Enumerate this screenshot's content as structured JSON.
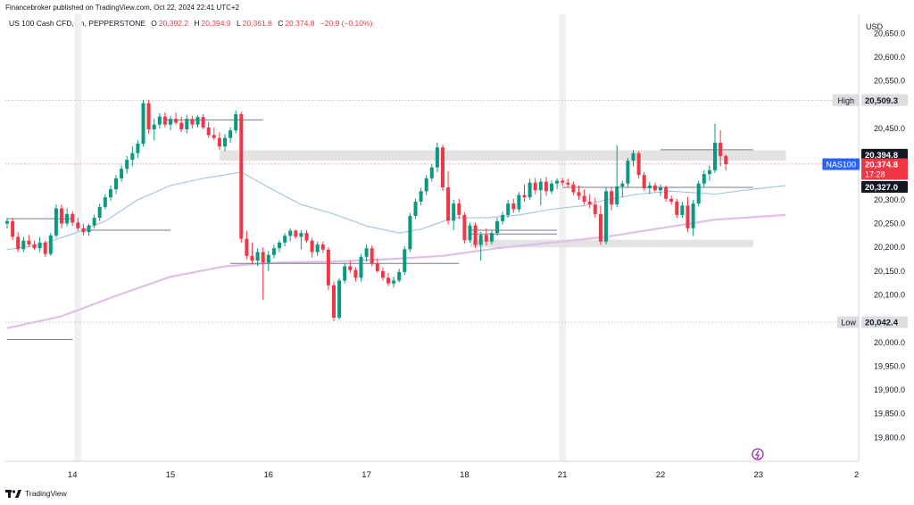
{
  "publisher_line": "Financebroker published on TradingView.com, Oct 22, 2024 22:41 UTC+2",
  "symbol": "US 100 Cash CFD, 1h, PEPPERSTONE",
  "ohlc": {
    "open_key": "O",
    "open": "20,392.2",
    "high_key": "H",
    "high": "20,394.9",
    "low_key": "L",
    "low": "20,361.8",
    "close_key": "C",
    "close": "20,374.8",
    "change": "−20.9 (−0.10%)"
  },
  "footer_brand": "TradingView",
  "colors": {
    "up": "#089981",
    "down": "#f23645",
    "ma_fast": "#9fc3dc",
    "ma_slow": "#e1bee7",
    "zone": "#e3e3e3",
    "level_line": "#787b86"
  },
  "chart_data": {
    "type": "candlestick",
    "currency_label": "USD",
    "ylim": [
      19750,
      20690
    ],
    "y_ticks": [
      19800,
      19850,
      19900,
      19950,
      20000,
      20050,
      20100,
      20150,
      20200,
      20250,
      20300,
      20350,
      20400,
      20450,
      20500,
      20550,
      20600,
      20650
    ],
    "y_tick_labels": [
      "19,800.0",
      "19,850.0",
      "19,900.0",
      "19,950.0",
      "20,000.0",
      "",
      "20,100.0",
      "20,150.0",
      "20,200.0",
      "20,250.0",
      "20,300.0",
      "",
      "",
      "20,450.0",
      "",
      "20,550.0",
      "20,600.0",
      "20,650.0"
    ],
    "x_labels": [
      "14",
      "15",
      "16",
      "17",
      "18",
      "21",
      "22",
      "23",
      "2"
    ],
    "x_label_index": [
      12,
      30,
      48,
      66,
      84,
      102,
      120,
      138,
      156
    ],
    "price_tags": [
      {
        "label": "High",
        "value": 20509.3,
        "text": "20,509.3",
        "style": "gray"
      },
      {
        "label": "",
        "value": 20394.8,
        "text": "20,394.8",
        "style": "dark"
      },
      {
        "label": "NAS100",
        "value": 20374.8,
        "text": "20,374.8",
        "countdown": "17:28",
        "style": "red"
      },
      {
        "label": "",
        "value": 20327.0,
        "text": "20,327.0",
        "style": "dark"
      },
      {
        "label": "Low",
        "value": 20042.4,
        "text": "20,042.4",
        "style": "gray"
      }
    ],
    "reference_lines": [
      {
        "name": "High",
        "value": 20509.3
      },
      {
        "name": "Low",
        "value": 20042.4
      }
    ],
    "zones": [
      {
        "from_index": 39,
        "to_index": 143,
        "low": 20382,
        "high": 20404
      },
      {
        "from_index": 85,
        "to_index": 137,
        "low": 20200,
        "high": 20216
      }
    ],
    "level_segments": [
      {
        "from_index": 0,
        "to_index": 12,
        "value": 20260
      },
      {
        "from_index": 14,
        "to_index": 30,
        "value": 20236
      },
      {
        "from_index": 29,
        "to_index": 47,
        "value": 20468
      },
      {
        "from_index": 41,
        "to_index": 83,
        "value": 20166
      },
      {
        "from_index": 85,
        "to_index": 101,
        "value": 20236
      },
      {
        "from_index": 85,
        "to_index": 101,
        "value": 20228
      },
      {
        "from_index": 102,
        "to_index": 137,
        "value": 20326
      },
      {
        "from_index": 120,
        "to_index": 137,
        "value": 20405
      },
      {
        "from_index": 0,
        "to_index": 12,
        "value": 20006
      }
    ],
    "candles": [
      [
        20250,
        20262,
        20240,
        20255
      ],
      [
        20255,
        20262,
        20215,
        20222
      ],
      [
        20222,
        20232,
        20190,
        20196
      ],
      [
        20196,
        20222,
        20190,
        20214
      ],
      [
        20214,
        20226,
        20200,
        20206
      ],
      [
        20206,
        20214,
        20195,
        20198
      ],
      [
        20198,
        20222,
        20190,
        20210
      ],
      [
        20210,
        20214,
        20180,
        20186
      ],
      [
        20186,
        20230,
        20182,
        20225
      ],
      [
        20225,
        20290,
        20220,
        20282
      ],
      [
        20282,
        20290,
        20240,
        20250
      ],
      [
        20250,
        20282,
        20244,
        20270
      ],
      [
        20270,
        20276,
        20245,
        20252
      ],
      [
        20252,
        20262,
        20235,
        20240
      ],
      [
        20240,
        20250,
        20225,
        20232
      ],
      [
        20232,
        20250,
        20224,
        20246
      ],
      [
        20246,
        20268,
        20240,
        20262
      ],
      [
        20262,
        20292,
        20255,
        20285
      ],
      [
        20285,
        20312,
        20280,
        20305
      ],
      [
        20305,
        20330,
        20298,
        20322
      ],
      [
        20322,
        20352,
        20312,
        20345
      ],
      [
        20345,
        20372,
        20338,
        20365
      ],
      [
        20365,
        20392,
        20355,
        20384
      ],
      [
        20384,
        20412,
        20370,
        20398
      ],
      [
        20398,
        20425,
        20388,
        20418
      ],
      [
        20418,
        20510,
        20412,
        20503
      ],
      [
        20503,
        20510,
        20440,
        20448
      ],
      [
        20448,
        20470,
        20425,
        20458
      ],
      [
        20458,
        20482,
        20450,
        20475
      ],
      [
        20475,
        20484,
        20452,
        20458
      ],
      [
        20458,
        20476,
        20446,
        20470
      ],
      [
        20470,
        20484,
        20458,
        20462
      ],
      [
        20462,
        20474,
        20442,
        20448
      ],
      [
        20448,
        20478,
        20440,
        20470
      ],
      [
        20470,
        20476,
        20450,
        20458
      ],
      [
        20458,
        20478,
        20452,
        20474
      ],
      [
        20474,
        20480,
        20448,
        20452
      ],
      [
        20452,
        20464,
        20430,
        20436
      ],
      [
        20436,
        20452,
        20425,
        20430
      ],
      [
        20430,
        20442,
        20405,
        20412
      ],
      [
        20412,
        20438,
        20402,
        20430
      ],
      [
        20430,
        20452,
        20420,
        20446
      ],
      [
        20446,
        20488,
        20440,
        20480
      ],
      [
        20480,
        20485,
        20210,
        20218
      ],
      [
        20218,
        20235,
        20175,
        20182
      ],
      [
        20182,
        20210,
        20165,
        20172
      ],
      [
        20172,
        20198,
        20160,
        20190
      ],
      [
        20190,
        20200,
        20090,
        20168
      ],
      [
        20168,
        20192,
        20150,
        20184
      ],
      [
        20184,
        20205,
        20176,
        20198
      ],
      [
        20198,
        20215,
        20190,
        20210
      ],
      [
        20210,
        20230,
        20202,
        20224
      ],
      [
        20224,
        20240,
        20212,
        20235
      ],
      [
        20235,
        20238,
        20218,
        20222
      ],
      [
        20222,
        20236,
        20196,
        20230
      ],
      [
        20230,
        20236,
        20210,
        20214
      ],
      [
        20214,
        20220,
        20178,
        20190
      ],
      [
        20190,
        20212,
        20182,
        20206
      ],
      [
        20206,
        20212,
        20188,
        20195
      ],
      [
        20195,
        20200,
        20110,
        20120
      ],
      [
        20120,
        20128,
        20045,
        20052
      ],
      [
        20052,
        20135,
        20048,
        20130
      ],
      [
        20130,
        20168,
        20124,
        20160
      ],
      [
        20160,
        20172,
        20146,
        20152
      ],
      [
        20152,
        20158,
        20128,
        20136
      ],
      [
        20136,
        20186,
        20128,
        20180
      ],
      [
        20180,
        20206,
        20170,
        20198
      ],
      [
        20198,
        20204,
        20160,
        20166
      ],
      [
        20166,
        20176,
        20146,
        20150
      ],
      [
        20150,
        20158,
        20130,
        20136
      ],
      [
        20136,
        20146,
        20118,
        20124
      ],
      [
        20124,
        20138,
        20115,
        20130
      ],
      [
        20130,
        20155,
        20126,
        20148
      ],
      [
        20148,
        20202,
        20142,
        20196
      ],
      [
        20196,
        20272,
        20190,
        20266
      ],
      [
        20266,
        20302,
        20260,
        20296
      ],
      [
        20296,
        20325,
        20288,
        20318
      ],
      [
        20318,
        20352,
        20310,
        20345
      ],
      [
        20345,
        20375,
        20338,
        20368
      ],
      [
        20368,
        20420,
        20358,
        20410
      ],
      [
        20410,
        20416,
        20318,
        20326
      ],
      [
        20326,
        20360,
        20248,
        20256
      ],
      [
        20256,
        20300,
        20236,
        20292
      ],
      [
        20292,
        20302,
        20260,
        20268
      ],
      [
        20268,
        20274,
        20208,
        20215
      ],
      [
        20215,
        20252,
        20210,
        20246
      ],
      [
        20246,
        20252,
        20198,
        20205
      ],
      [
        20205,
        20232,
        20172,
        20226
      ],
      [
        20226,
        20240,
        20204,
        20212
      ],
      [
        20212,
        20236,
        20206,
        20230
      ],
      [
        20230,
        20262,
        20224,
        20255
      ],
      [
        20255,
        20275,
        20248,
        20268
      ],
      [
        20268,
        20300,
        20262,
        20292
      ],
      [
        20292,
        20302,
        20272,
        20280
      ],
      [
        20280,
        20316,
        20274,
        20310
      ],
      [
        20310,
        20332,
        20296,
        20305
      ],
      [
        20305,
        20344,
        20300,
        20336
      ],
      [
        20336,
        20346,
        20312,
        20320
      ],
      [
        20320,
        20345,
        20288,
        20338
      ],
      [
        20338,
        20348,
        20308,
        20318
      ],
      [
        20318,
        20340,
        20312,
        20334
      ],
      [
        20334,
        20345,
        20322,
        20340
      ],
      [
        20340,
        20346,
        20330,
        20336
      ],
      [
        20336,
        20344,
        20326,
        20332
      ],
      [
        20332,
        20338,
        20310,
        20316
      ],
      [
        20316,
        20330,
        20300,
        20308
      ],
      [
        20308,
        20322,
        20290,
        20296
      ],
      [
        20296,
        20312,
        20282,
        20290
      ],
      [
        20290,
        20304,
        20262,
        20270
      ],
      [
        20270,
        20288,
        20205,
        20212
      ],
      [
        20212,
        20325,
        20206,
        20318
      ],
      [
        20318,
        20326,
        20278,
        20290
      ],
      [
        20290,
        20415,
        20284,
        20328
      ],
      [
        20328,
        20340,
        20305,
        20334
      ],
      [
        20334,
        20388,
        20326,
        20382
      ],
      [
        20382,
        20405,
        20370,
        20398
      ],
      [
        20398,
        20402,
        20345,
        20352
      ],
      [
        20352,
        20358,
        20318,
        20324
      ],
      [
        20324,
        20338,
        20312,
        20330
      ],
      [
        20330,
        20336,
        20316,
        20320
      ],
      [
        20320,
        20332,
        20308,
        20326
      ],
      [
        20326,
        20330,
        20296,
        20302
      ],
      [
        20302,
        20308,
        20290,
        20296
      ],
      [
        20296,
        20302,
        20262,
        20268
      ],
      [
        20268,
        20296,
        20262,
        20288
      ],
      [
        20288,
        20306,
        20232,
        20240
      ],
      [
        20240,
        20300,
        20224,
        20292
      ],
      [
        20292,
        20340,
        20286,
        20334
      ],
      [
        20334,
        20362,
        20326,
        20354
      ],
      [
        20354,
        20372,
        20340,
        20362
      ],
      [
        20362,
        20460,
        20356,
        20420
      ],
      [
        20420,
        20446,
        20370,
        20392
      ],
      [
        20392,
        20395,
        20362,
        20375
      ]
    ],
    "ma_fast": [
      [
        0,
        20195
      ],
      [
        6,
        20205
      ],
      [
        12,
        20228
      ],
      [
        18,
        20255
      ],
      [
        24,
        20300
      ],
      [
        30,
        20330
      ],
      [
        36,
        20345
      ],
      [
        43,
        20358
      ],
      [
        48,
        20326
      ],
      [
        54,
        20290
      ],
      [
        60,
        20270
      ],
      [
        66,
        20245
      ],
      [
        72,
        20230
      ],
      [
        76,
        20238
      ],
      [
        82,
        20262
      ],
      [
        88,
        20262
      ],
      [
        94,
        20268
      ],
      [
        100,
        20280
      ],
      [
        106,
        20288
      ],
      [
        110,
        20300
      ],
      [
        116,
        20312
      ],
      [
        122,
        20318
      ],
      [
        130,
        20312
      ],
      [
        137,
        20322
      ],
      [
        143,
        20330
      ]
    ],
    "ma_slow": [
      [
        0,
        20030
      ],
      [
        10,
        20055
      ],
      [
        20,
        20098
      ],
      [
        30,
        20138
      ],
      [
        40,
        20160
      ],
      [
        50,
        20168
      ],
      [
        60,
        20170
      ],
      [
        70,
        20175
      ],
      [
        80,
        20182
      ],
      [
        90,
        20198
      ],
      [
        100,
        20210
      ],
      [
        110,
        20222
      ],
      [
        120,
        20240
      ],
      [
        130,
        20258
      ],
      [
        143,
        20268
      ]
    ],
    "session_bands_index": [
      13,
      102
    ]
  }
}
